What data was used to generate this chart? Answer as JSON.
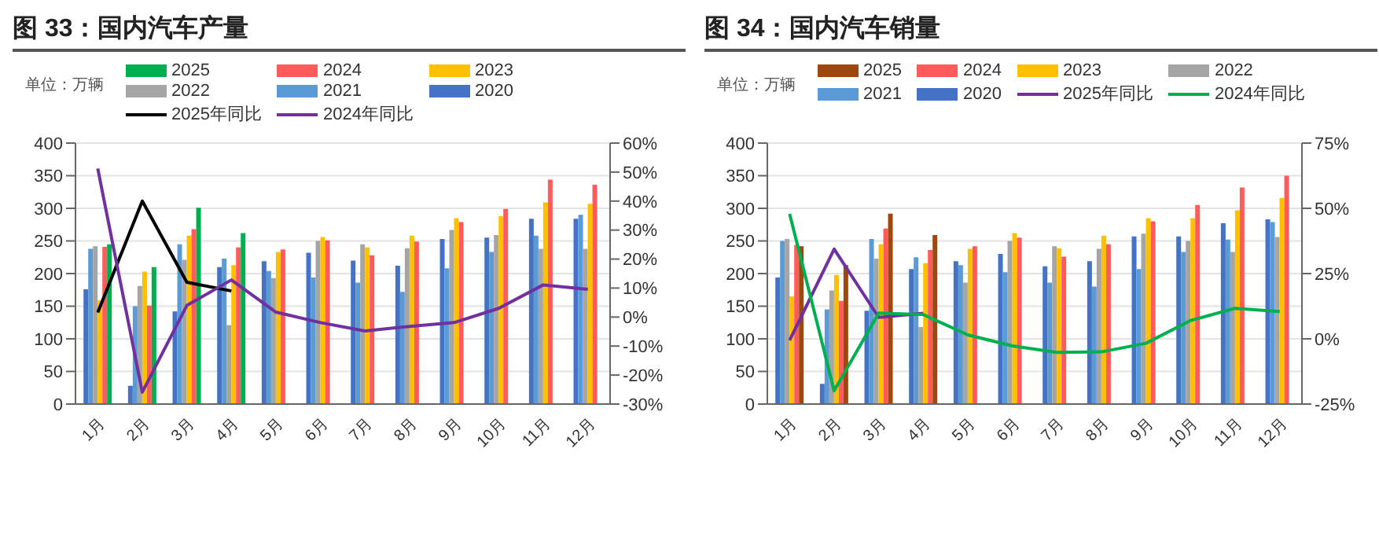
{
  "chart_data": [
    {
      "type": "bar",
      "title": "图 33：国内汽车产量",
      "ylabel": "单位：万辆",
      "categories": [
        "1月",
        "2月",
        "3月",
        "4月",
        "5月",
        "6月",
        "7月",
        "8月",
        "9月",
        "10月",
        "11月",
        "12月"
      ],
      "series": [
        {
          "name": "2025",
          "color": "#00b050",
          "values": [
            245,
            210,
            301,
            262,
            null,
            null,
            null,
            null,
            null,
            null,
            null,
            null
          ]
        },
        {
          "name": "2024",
          "color": "#ff5b5b",
          "values": [
            241,
            151,
            268,
            240,
            237,
            251,
            228,
            249,
            279,
            299,
            344,
            336
          ]
        },
        {
          "name": "2023",
          "color": "#ffc000",
          "values": [
            159,
            203,
            258,
            213,
            233,
            256,
            240,
            258,
            285,
            288,
            309,
            307
          ]
        },
        {
          "name": "2022",
          "color": "#a5a5a5",
          "values": [
            242,
            181,
            221,
            121,
            193,
            250,
            245,
            239,
            267,
            259,
            238,
            238
          ]
        },
        {
          "name": "2021",
          "color": "#5b9bd5",
          "values": [
            238,
            150,
            245,
            223,
            204,
            194,
            186,
            172,
            208,
            233,
            258,
            290
          ]
        },
        {
          "name": "2020",
          "color": "#4472c4",
          "values": [
            176,
            28,
            142,
            210,
            219,
            232,
            220,
            212,
            253,
            255,
            284,
            284
          ]
        },
        {
          "name": "2025年同比",
          "type": "line",
          "axis": "y2",
          "color": "#000000",
          "values": [
            1.6,
            40,
            12,
            9,
            null,
            null,
            null,
            null,
            null,
            null,
            null,
            null
          ]
        },
        {
          "name": "2024年同比",
          "type": "line",
          "axis": "y2",
          "color": "#7030a0",
          "values": [
            51.2,
            -25.9,
            4,
            12.8,
            1.7,
            -1.9,
            -4.8,
            -3.2,
            -1.9,
            3,
            11.1,
            9.6
          ]
        }
      ],
      "ylim": [
        0,
        400
      ],
      "yticks": [
        0,
        50,
        100,
        150,
        200,
        250,
        300,
        350,
        400
      ],
      "y2lim": [
        -30,
        60
      ],
      "y2ticks": [
        {
          "value": -30,
          "label": "-30%"
        },
        {
          "value": -20,
          "label": "-20%"
        },
        {
          "value": -10,
          "label": "-10%"
        },
        {
          "value": 0,
          "label": "0%"
        },
        {
          "value": 10,
          "label": "10%"
        },
        {
          "value": 20,
          "label": "20%"
        },
        {
          "value": 30,
          "label": "30%"
        },
        {
          "value": 40,
          "label": "40%"
        },
        {
          "value": 50,
          "label": "50%"
        },
        {
          "value": 60,
          "label": "60%"
        }
      ],
      "grid": "y",
      "legend": "top",
      "marker": "none",
      "line_style": "solid"
    },
    {
      "type": "bar",
      "title": "图 34：国内汽车销量",
      "ylabel": "单位：万辆",
      "categories": [
        "1月",
        "2月",
        "3月",
        "4月",
        "5月",
        "6月",
        "7月",
        "8月",
        "9月",
        "10月",
        "11月",
        "12月"
      ],
      "series": [
        {
          "name": "2025",
          "color": "#9e480e",
          "values": [
            242,
            213,
            292,
            259,
            null,
            null,
            null,
            null,
            null,
            null,
            null,
            null
          ]
        },
        {
          "name": "2024",
          "color": "#ff5b5b",
          "values": [
            244,
            158,
            269,
            236,
            242,
            255,
            226,
            245,
            280,
            305,
            332,
            350
          ]
        },
        {
          "name": "2023",
          "color": "#ffc000",
          "values": [
            165,
            198,
            245,
            216,
            238,
            262,
            239,
            258,
            285,
            285,
            297,
            316
          ]
        },
        {
          "name": "2022",
          "color": "#a5a5a5",
          "values": [
            253,
            174,
            223,
            118,
            186,
            250,
            242,
            238,
            261,
            250,
            233,
            256
          ]
        },
        {
          "name": "2021",
          "color": "#5b9bd5",
          "values": [
            250,
            145,
            253,
            225,
            213,
            202,
            186,
            180,
            207,
            233,
            252,
            279
          ]
        },
        {
          "name": "2020",
          "color": "#4472c4",
          "values": [
            194,
            31,
            143,
            207,
            219,
            230,
            211,
            219,
            257,
            257,
            277,
            283
          ]
        },
        {
          "name": "2025年同比",
          "type": "line",
          "axis": "y2",
          "color": "#7030a0",
          "values": [
            -0.6,
            34.4,
            8.2,
            9.8,
            null,
            null,
            null,
            null,
            null,
            null,
            null,
            null
          ]
        },
        {
          "name": "2024年同比",
          "type": "line",
          "axis": "y2",
          "color": "#00b050",
          "values": [
            47.9,
            -19.9,
            9.9,
            9.3,
            1.5,
            -2.7,
            -5.2,
            -5,
            -1.7,
            7,
            11.7,
            10.5
          ]
        }
      ],
      "ylim": [
        0,
        400
      ],
      "yticks": [
        0,
        50,
        100,
        150,
        200,
        250,
        300,
        350,
        400
      ],
      "y2lim": [
        -25,
        75
      ],
      "y2ticks": [
        {
          "value": -25,
          "label": "-25%"
        },
        {
          "value": 0,
          "label": "0%"
        },
        {
          "value": 25,
          "label": "25%"
        },
        {
          "value": 50,
          "label": "50%"
        },
        {
          "value": 75,
          "label": "75%"
        }
      ],
      "grid": "y",
      "legend": "top",
      "marker": "none",
      "line_style": "solid"
    }
  ]
}
